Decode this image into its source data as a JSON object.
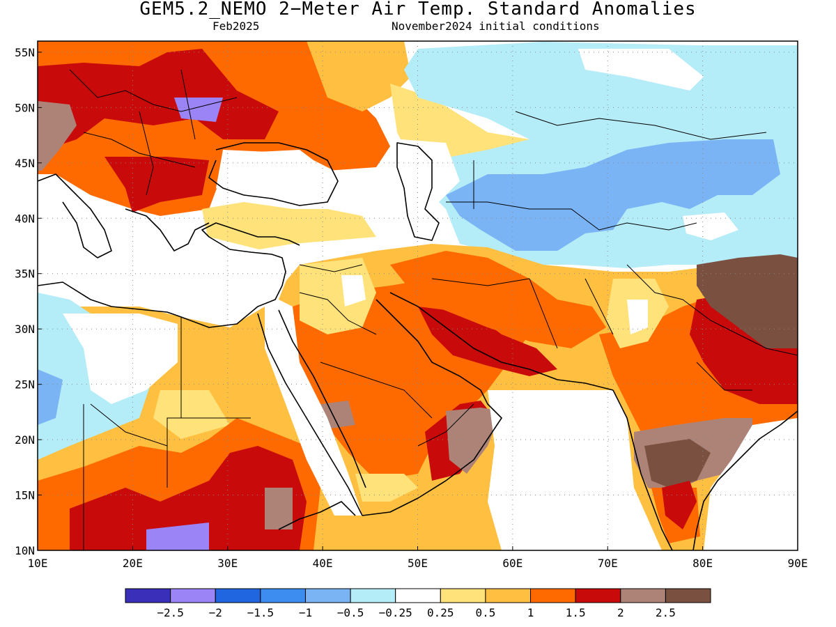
{
  "header": {
    "title": "GEM5.2_NEMO 2−Meter Air Temp. Standard Anomalies",
    "valid_month": "Feb2025",
    "init_conditions": "November2024 initial conditions"
  },
  "map": {
    "lon_range": [
      10,
      90
    ],
    "lat_range": [
      10,
      56
    ],
    "lon_ticks": [
      "10E",
      "20E",
      "30E",
      "40E",
      "50E",
      "60E",
      "70E",
      "80E",
      "90E"
    ],
    "lat_ticks": [
      "10N",
      "15N",
      "20N",
      "25N",
      "30N",
      "35N",
      "40N",
      "45N",
      "50N",
      "55N"
    ],
    "lon_tick_values": [
      10,
      20,
      30,
      40,
      50,
      60,
      70,
      80,
      90
    ],
    "lat_tick_values": [
      10,
      15,
      20,
      25,
      30,
      35,
      40,
      45,
      50,
      55
    ],
    "gridlines": "dotted"
  },
  "legend": {
    "colors": [
      "#3a2fb8",
      "#9b84f5",
      "#1f66e0",
      "#3d8cf0",
      "#7ab4f5",
      "#b4ecf7",
      "#ffffff",
      "#ffe27a",
      "#ffbf40",
      "#ff6a00",
      "#c80a0a",
      "#ae8377",
      "#7a5140"
    ],
    "labels": [
      "−2.5",
      "−2",
      "−1.5",
      "−1",
      "−0.5",
      "−0.25",
      "0.25",
      "0.5",
      "1",
      "1.5",
      "2",
      "2.5"
    ]
  }
}
